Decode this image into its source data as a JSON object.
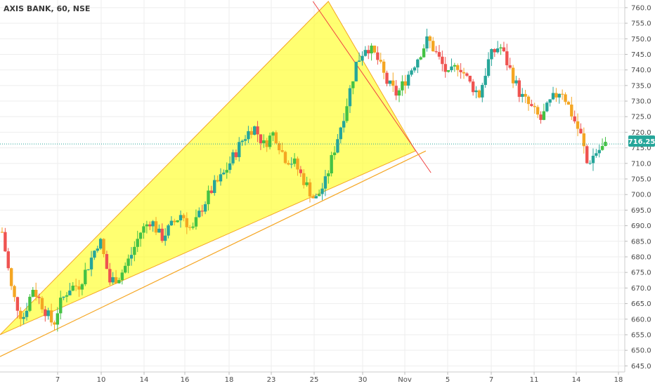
{
  "header": {
    "title": "AXIS BANK, 60, NSE"
  },
  "price_tag": {
    "value": "716.25",
    "color": "#26a69a"
  },
  "colors": {
    "up": "#26a69a",
    "down": "#ef5350",
    "orange": "#f4a623",
    "green": "#44c244",
    "fill": "#ffff3a",
    "boundary": "#f5a623",
    "trendline_red": "#f04040",
    "grid": "#eeeeee",
    "axis_text": "#4a4a4a"
  },
  "chart_data": {
    "type": "candlestick",
    "title": "AXIS BANK, 60, NSE",
    "x_ticks": [
      "7",
      "10",
      "14",
      "16",
      "18",
      "23",
      "25",
      "30",
      "Nov",
      "5",
      "7",
      "11",
      "14",
      "18"
    ],
    "y_ticks": [
      645,
      650,
      655,
      660,
      665,
      670,
      675,
      680,
      685,
      690,
      695,
      700,
      705,
      710,
      715,
      720,
      725,
      730,
      735,
      740,
      745,
      750,
      755,
      760
    ],
    "ylim": [
      643.5,
      762
    ],
    "last_price": 716.25,
    "grid": true,
    "key_points": [
      {
        "label": "7",
        "close": 664
      },
      {
        "label": "10",
        "close": 680
      },
      {
        "label": "14",
        "close": 684
      },
      {
        "label": "16",
        "close": 690
      },
      {
        "label": "18",
        "close": 710
      },
      {
        "label": "23",
        "close": 716
      },
      {
        "label": "25",
        "close": 698
      },
      {
        "label": "30",
        "close": 748
      },
      {
        "label": "Nov",
        "close": 735
      },
      {
        "label": "5",
        "close": 742
      },
      {
        "label": "7",
        "close": 748
      },
      {
        "label": "11",
        "close": 727
      },
      {
        "label": "14",
        "close": 712
      }
    ],
    "drawings": [
      {
        "type": "triangle",
        "points": [
          [
            0,
            655
          ],
          [
            64,
            762
          ],
          [
            81,
            714
          ]
        ]
      },
      {
        "type": "trendline",
        "from": [
          61,
          762
        ],
        "to": [
          84,
          707
        ]
      },
      {
        "type": "trendline",
        "from": [
          0,
          648
        ],
        "to": [
          83,
          714
        ]
      }
    ]
  }
}
